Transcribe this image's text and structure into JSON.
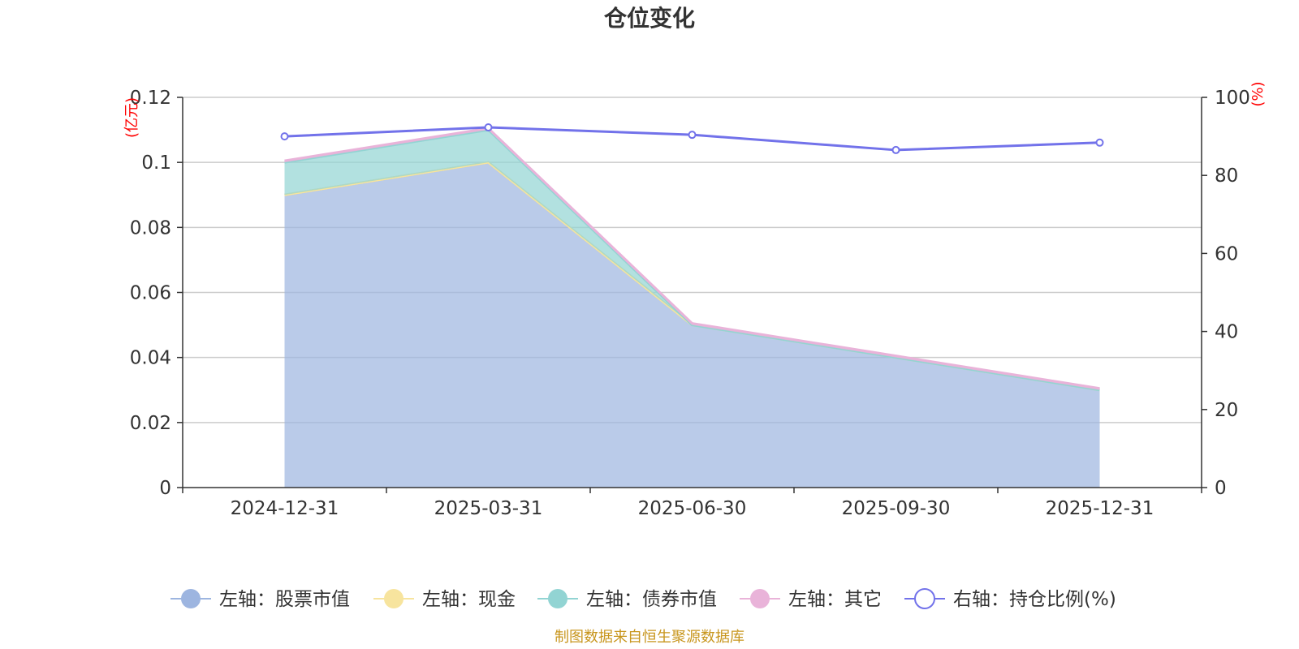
{
  "chart_data": {
    "type": "area",
    "title": "仓位变化",
    "categories": [
      "2024-12-31",
      "2025-03-31",
      "2025-06-30",
      "2025-09-30",
      "2025-12-31"
    ],
    "left_axis": {
      "unit": "(亿元)",
      "ylim": [
        0,
        0.12
      ],
      "ticks": [
        "0",
        "0.02",
        "0.04",
        "0.06",
        "0.08",
        "0.1",
        "0.12"
      ]
    },
    "right_axis": {
      "unit": "(%)",
      "ylim": [
        0,
        100
      ],
      "ticks": [
        "0",
        "20",
        "40",
        "60",
        "80",
        "100"
      ]
    },
    "stacked": true,
    "grid": true,
    "legend_position": "bottom",
    "series": [
      {
        "name": "左轴：股票市值",
        "axis": "left",
        "kind": "area",
        "color": "#9db5e0",
        "values": [
          0.09,
          0.1,
          0.05,
          0.04,
          0.03
        ]
      },
      {
        "name": "左轴：现金",
        "axis": "left",
        "kind": "area",
        "color": "#f7e49e",
        "values": [
          0.0,
          0.0,
          0.0,
          0.0,
          0.0
        ]
      },
      {
        "name": "左轴：债券市值",
        "axis": "left",
        "kind": "area",
        "color": "#92d4d3",
        "values": [
          0.01,
          0.01,
          0.0,
          0.0,
          0.0
        ]
      },
      {
        "name": "左轴：其它",
        "axis": "left",
        "kind": "area",
        "color": "#e9b3d9",
        "values": [
          0.0005,
          0.0005,
          0.0005,
          0.0005,
          0.0005
        ]
      },
      {
        "name": "右轴：持仓比例(%)",
        "axis": "right",
        "kind": "line",
        "color": "#7272ea",
        "values": [
          90.0,
          92.3,
          90.4,
          86.5,
          88.4
        ]
      }
    ]
  },
  "source": "制图数据来自恒生聚源数据库"
}
